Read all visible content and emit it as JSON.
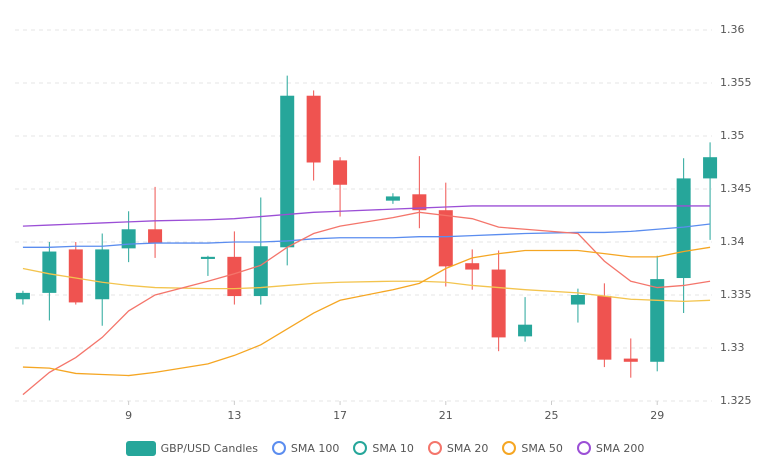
{
  "chart_data": {
    "type": "candlestick",
    "candle_name": "GBP/USD Candles",
    "up_color": "#26a69a",
    "down_color": "#ef5350",
    "x": [
      5,
      6,
      7,
      8,
      9,
      10,
      12,
      13,
      14,
      15,
      16,
      17,
      19,
      20,
      21,
      22,
      23,
      24,
      26,
      27,
      28,
      29,
      30,
      31
    ],
    "open": [
      1.3346,
      1.3352,
      1.3393,
      1.3346,
      1.3394,
      1.3412,
      1.3384,
      1.3386,
      1.3349,
      1.3395,
      1.3538,
      1.3477,
      1.3439,
      1.3445,
      1.343,
      1.338,
      1.3374,
      1.3311,
      1.3341,
      1.3349,
      1.329,
      1.3287,
      1.3366,
      1.346
    ],
    "high": [
      1.3354,
      1.34,
      1.34,
      1.3408,
      1.3429,
      1.3452,
      1.3387,
      1.341,
      1.3442,
      1.3557,
      1.3543,
      1.348,
      1.3446,
      1.3481,
      1.3456,
      1.3393,
      1.3392,
      1.3348,
      1.3356,
      1.3361,
      1.3309,
      1.3387,
      1.3479,
      1.3494
    ],
    "low": [
      1.3341,
      1.3326,
      1.3341,
      1.3321,
      1.3381,
      1.3385,
      1.3368,
      1.3341,
      1.3341,
      1.3378,
      1.3458,
      1.3424,
      1.3436,
      1.3413,
      1.3358,
      1.3355,
      1.3297,
      1.3306,
      1.3324,
      1.3282,
      1.3272,
      1.3278,
      1.3333,
      1.3402
    ],
    "close": [
      1.3352,
      1.3391,
      1.3343,
      1.3393,
      1.3412,
      1.3399,
      1.3386,
      1.3349,
      1.3396,
      1.3538,
      1.3475,
      1.3454,
      1.3443,
      1.343,
      1.3377,
      1.3374,
      1.331,
      1.3322,
      1.335,
      1.3289,
      1.3287,
      1.3365,
      1.346,
      1.348
    ],
    "series": [
      {
        "name": "SMA 100",
        "color": "#5b8def",
        "line_color": "#5b8def",
        "values": [
          1.3395,
          1.3395,
          1.3396,
          1.3396,
          1.3398,
          1.3399,
          1.3399,
          1.34,
          1.34,
          1.3401,
          1.3403,
          1.3404,
          1.3404,
          1.3405,
          1.3405,
          1.3406,
          1.3407,
          1.3408,
          1.3409,
          1.3409,
          1.341,
          1.3412,
          1.3414,
          1.3417
        ]
      },
      {
        "name": "SMA 10",
        "color": "#26a69a",
        "line_color": "#f3c44e",
        "values": [
          1.3375,
          1.337,
          1.3366,
          1.3362,
          1.3359,
          1.3357,
          1.3356,
          1.3356,
          1.3357,
          1.3359,
          1.3361,
          1.3362,
          1.3363,
          1.3363,
          1.3362,
          1.3359,
          1.3357,
          1.3355,
          1.3352,
          1.3349,
          1.3346,
          1.3345,
          1.3344,
          1.3345
        ]
      },
      {
        "name": "SMA 20",
        "color": "#f4756b",
        "line_color": "#f4756b",
        "values": [
          1.3256,
          1.3277,
          1.3291,
          1.331,
          1.3335,
          1.335,
          1.3363,
          1.337,
          1.3378,
          1.3395,
          1.3408,
          1.3415,
          1.3423,
          1.3428,
          1.3425,
          1.3422,
          1.3414,
          1.3412,
          1.3408,
          1.3382,
          1.3363,
          1.3357,
          1.3359,
          1.3363
        ]
      },
      {
        "name": "SMA 50",
        "color": "#f5a623",
        "line_color": "#f5a623",
        "values": [
          1.3282,
          1.3281,
          1.3276,
          1.3275,
          1.3274,
          1.3277,
          1.3285,
          1.3293,
          1.3303,
          1.3318,
          1.3333,
          1.3345,
          1.3355,
          1.3361,
          1.3375,
          1.3385,
          1.3389,
          1.3392,
          1.3392,
          1.3389,
          1.3386,
          1.3386,
          1.3391,
          1.3395
        ]
      },
      {
        "name": "SMA 200",
        "color": "#9b4fd6",
        "line_color": "#9b4fd6",
        "values": [
          1.3415,
          1.3416,
          1.3417,
          1.3418,
          1.3419,
          1.342,
          1.3421,
          1.3422,
          1.3424,
          1.3426,
          1.3428,
          1.3429,
          1.3431,
          1.3432,
          1.3433,
          1.3434,
          1.3434,
          1.3434,
          1.3434,
          1.3434,
          1.3434,
          1.3434,
          1.3434,
          1.3434
        ]
      }
    ],
    "xlim": [
      4.7,
      31.3
    ],
    "xticks": [
      9,
      13,
      17,
      21,
      25,
      29
    ],
    "ylim": [
      1.325,
      1.36
    ],
    "yticks": [
      1.325,
      1.33,
      1.335,
      1.34,
      1.345,
      1.35,
      1.355,
      1.36
    ],
    "grid": true
  }
}
